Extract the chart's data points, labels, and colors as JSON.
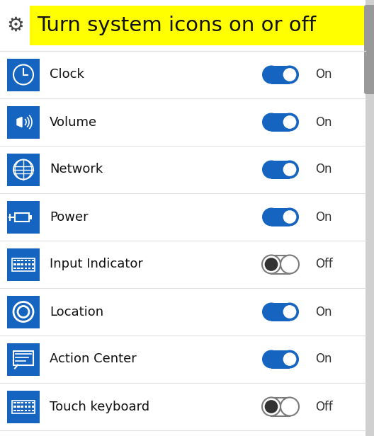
{
  "title": "Turn system icons on or off",
  "bg_color": "#ffffff",
  "title_bg": "#ffff00",
  "icon_bg": "#1565C0",
  "toggle_on_color": "#1565C0",
  "items": [
    {
      "label": "Clock",
      "state": "On",
      "icon": "clock"
    },
    {
      "label": "Volume",
      "state": "On",
      "icon": "volume"
    },
    {
      "label": "Network",
      "state": "On",
      "icon": "network"
    },
    {
      "label": "Power",
      "state": "On",
      "icon": "power"
    },
    {
      "label": "Input Indicator",
      "state": "Off",
      "icon": "keyboard"
    },
    {
      "label": "Location",
      "state": "On",
      "icon": "location"
    },
    {
      "label": "Action Center",
      "state": "On",
      "icon": "action_center"
    },
    {
      "label": "Touch keyboard",
      "state": "Off",
      "icon": "touch_keyboard"
    }
  ],
  "label_fontsize": 13,
  "title_fontsize": 21,
  "state_fontsize": 12
}
